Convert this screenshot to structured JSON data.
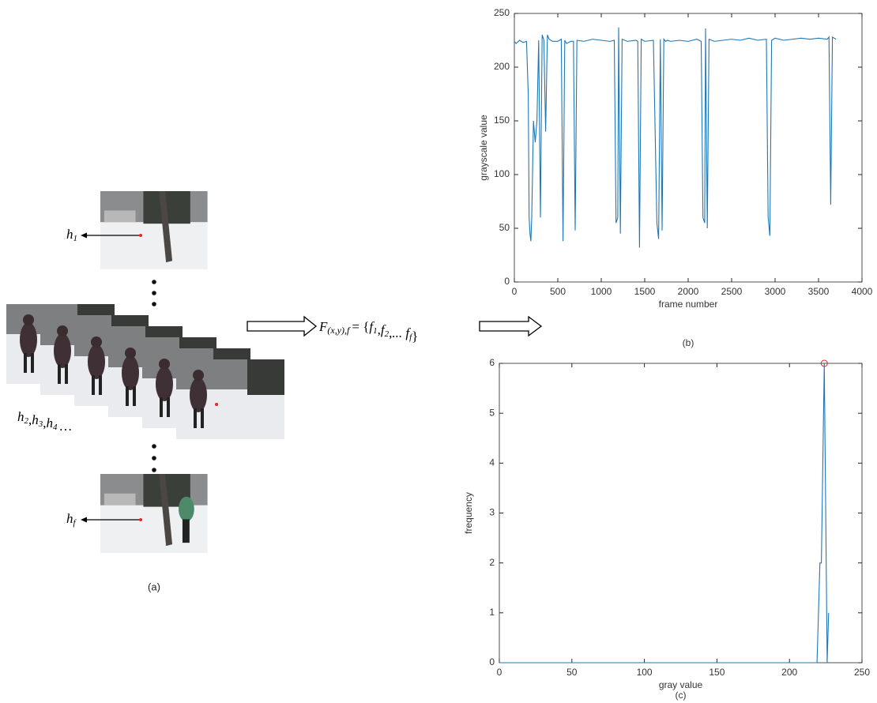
{
  "panel_a": {
    "caption": "(a)",
    "top_label": {
      "base": "h",
      "sub": "1"
    },
    "middle_label": {
      "items": [
        {
          "base": "h",
          "sub": "2"
        },
        {
          "base": "h",
          "sub": "3"
        },
        {
          "base": "h",
          "sub": "4"
        }
      ],
      "separator": ",",
      "tail": "…"
    },
    "bottom_label": {
      "base": "h",
      "sub": "f"
    }
  },
  "formula": {
    "lhs": "F",
    "lhs_sub": "(x,y),f",
    "open": "= {",
    "items": [
      {
        "base": "f",
        "sub": "1"
      },
      {
        "base": "f",
        "sub": "2"
      },
      {
        "base": "... f",
        "sub": "f"
      }
    ],
    "separator": ",",
    "close": "}"
  },
  "chart_data": [
    {
      "type": "line",
      "caption": "(b)",
      "xlabel": "frame number",
      "ylabel": "grayscale value",
      "color": "#1f77b4",
      "x": [
        0,
        20,
        60,
        100,
        140,
        160,
        170,
        180,
        190,
        200,
        220,
        240,
        260,
        280,
        300,
        320,
        340,
        360,
        380,
        400,
        440,
        500,
        540,
        560,
        580,
        600,
        650,
        680,
        700,
        720,
        800,
        900,
        1000,
        1100,
        1150,
        1170,
        1190,
        1200,
        1220,
        1240,
        1300,
        1400,
        1420,
        1440,
        1460,
        1500,
        1600,
        1640,
        1660,
        1680,
        1700,
        1720,
        1740,
        1760,
        1800,
        1900,
        2000,
        2100,
        2150,
        2170,
        2190,
        2200,
        2220,
        2240,
        2300,
        2400,
        2500,
        2600,
        2700,
        2800,
        2900,
        2920,
        2940,
        2960,
        2980,
        3000,
        3100,
        3200,
        3300,
        3400,
        3500,
        3600,
        3620,
        3640,
        3660,
        3700
      ],
      "values": [
        224,
        222,
        225,
        223,
        224,
        175,
        60,
        45,
        38,
        60,
        150,
        130,
        150,
        225,
        60,
        230,
        225,
        140,
        230,
        226,
        224,
        224,
        226,
        38,
        225,
        222,
        224,
        224,
        48,
        225,
        224,
        226,
        225,
        224,
        225,
        55,
        60,
        237,
        45,
        226,
        224,
        225,
        224,
        32,
        226,
        224,
        225,
        55,
        40,
        226,
        48,
        226,
        224,
        225,
        224,
        225,
        224,
        226,
        224,
        60,
        55,
        236,
        50,
        226,
        224,
        225,
        226,
        225,
        227,
        225,
        226,
        60,
        43,
        225,
        226,
        227,
        225,
        226,
        227,
        226,
        227,
        226,
        228,
        72,
        228,
        226
      ],
      "xlim": [
        0,
        4000
      ],
      "ylim": [
        0,
        250
      ],
      "xticks": [
        0,
        500,
        1000,
        1500,
        2000,
        2500,
        3000,
        3500,
        4000
      ],
      "yticks": [
        0,
        50,
        100,
        150,
        200,
        250
      ]
    },
    {
      "type": "line",
      "caption": "(c)",
      "xlabel": "gray value",
      "ylabel": "frequency",
      "color": "#1f77b4",
      "x": [
        0,
        219,
        221,
        222,
        224,
        226,
        227
      ],
      "values": [
        0,
        0,
        2,
        2,
        6,
        0,
        1
      ],
      "marker": {
        "x": 224,
        "y": 6,
        "color": "#e02020"
      },
      "xlim": [
        0,
        250
      ],
      "ylim": [
        0,
        6
      ],
      "xticks": [
        0,
        50,
        100,
        150,
        200,
        250
      ],
      "yticks": [
        0,
        1,
        2,
        3,
        4,
        5,
        6
      ]
    }
  ]
}
